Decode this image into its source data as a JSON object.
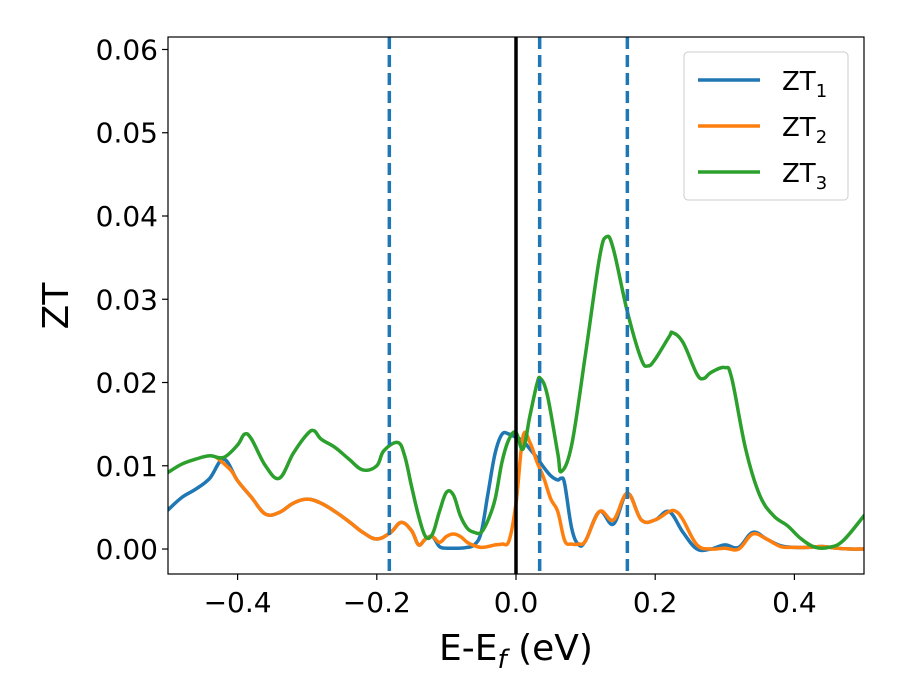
{
  "chart_data": {
    "type": "line",
    "title": "",
    "xlabel": "E-E",
    "xlabel_sub": "f",
    "xlabel_unit": " (eV)",
    "ylabel": "ZT",
    "xlim": [
      -0.5,
      0.5
    ],
    "ylim": [
      -0.003,
      0.0615
    ],
    "xticks": [
      -0.4,
      -0.2,
      0.0,
      0.2,
      0.4
    ],
    "xtick_labels": [
      "−0.4",
      "−0.2",
      "0.0",
      "0.2",
      "0.4"
    ],
    "yticks": [
      0.0,
      0.01,
      0.02,
      0.03,
      0.04,
      0.05,
      0.06
    ],
    "ytick_labels": [
      "0.00",
      "0.01",
      "0.02",
      "0.03",
      "0.04",
      "0.05",
      "0.06"
    ],
    "grid": false,
    "legend_position": "top-right",
    "vertical_lines": [
      {
        "x": -0.182,
        "style": "dashed",
        "color": "#1f77b4"
      },
      {
        "x": 0.0,
        "style": "solid",
        "color": "#000000"
      },
      {
        "x": 0.034,
        "style": "dashed",
        "color": "#1f77b4"
      },
      {
        "x": 0.16,
        "style": "dashed",
        "color": "#1f77b4"
      }
    ],
    "series": [
      {
        "name": "ZT",
        "name_sub": "1",
        "color": "#1f77b4",
        "x": [
          -0.5,
          -0.48,
          -0.46,
          -0.44,
          -0.42,
          -0.4,
          -0.38,
          -0.36,
          -0.34,
          -0.32,
          -0.3,
          -0.28,
          -0.26,
          -0.24,
          -0.22,
          -0.2,
          -0.18,
          -0.165,
          -0.15,
          -0.14,
          -0.13,
          -0.12,
          -0.11,
          -0.1,
          -0.09,
          -0.08,
          -0.07,
          -0.06,
          -0.05,
          -0.04,
          -0.03,
          -0.02,
          -0.01,
          0.0,
          0.01,
          0.02,
          0.03,
          0.04,
          0.05,
          0.06,
          0.065,
          0.07,
          0.08,
          0.09,
          0.1,
          0.12,
          0.14,
          0.16,
          0.18,
          0.2,
          0.22,
          0.24,
          0.26,
          0.28,
          0.3,
          0.32,
          0.34,
          0.36,
          0.38,
          0.4,
          0.42,
          0.44,
          0.46,
          0.48,
          0.5
        ],
        "y": [
          0.0047,
          0.0062,
          0.0072,
          0.0085,
          0.0108,
          0.0082,
          0.0062,
          0.0042,
          0.0044,
          0.0055,
          0.006,
          0.0055,
          0.0045,
          0.0033,
          0.002,
          0.0012,
          0.002,
          0.0032,
          0.0022,
          0.0005,
          0.0012,
          0.0015,
          0.0003,
          0.0001,
          0.0001,
          0.0001,
          0.0002,
          0.0005,
          0.002,
          0.0068,
          0.0115,
          0.0138,
          0.0138,
          0.0134,
          0.013,
          0.012,
          0.011,
          0.0098,
          0.0088,
          0.0083,
          0.0085,
          0.0078,
          0.0025,
          0.0005,
          0.001,
          0.0045,
          0.003,
          0.0067,
          0.0035,
          0.0035,
          0.0045,
          0.002,
          0.0,
          0.0,
          0.0005,
          0.0002,
          0.002,
          0.0012,
          0.0004,
          0.0002,
          0.0002,
          0.0003,
          0.0001,
          0.0,
          0.0
        ]
      },
      {
        "name": "ZT",
        "name_sub": "2",
        "color": "#ff7f0e",
        "x": [
          -0.43,
          -0.41,
          -0.4,
          -0.38,
          -0.36,
          -0.34,
          -0.32,
          -0.3,
          -0.28,
          -0.26,
          -0.24,
          -0.22,
          -0.2,
          -0.18,
          -0.165,
          -0.15,
          -0.14,
          -0.13,
          -0.12,
          -0.11,
          -0.1,
          -0.09,
          -0.08,
          -0.07,
          -0.06,
          -0.05,
          -0.04,
          -0.03,
          -0.02,
          -0.01,
          0.0,
          0.01,
          0.02,
          0.03,
          0.04,
          0.05,
          0.06,
          0.07,
          0.08,
          0.09,
          0.1,
          0.12,
          0.14,
          0.16,
          0.18,
          0.2,
          0.22,
          0.23,
          0.24,
          0.26,
          0.28,
          0.3,
          0.32,
          0.34,
          0.36,
          0.38,
          0.4,
          0.42,
          0.44,
          0.46,
          0.48,
          0.5
        ],
        "y": [
          0.011,
          0.0095,
          0.0082,
          0.0062,
          0.0042,
          0.0044,
          0.0055,
          0.006,
          0.0055,
          0.0045,
          0.0033,
          0.002,
          0.0012,
          0.002,
          0.0032,
          0.0022,
          0.0005,
          0.0012,
          0.0015,
          0.0008,
          0.0015,
          0.0018,
          0.0015,
          0.0008,
          0.0004,
          0.0002,
          0.0003,
          0.0005,
          0.0006,
          0.001,
          0.0055,
          0.0135,
          0.0128,
          0.0105,
          0.0085,
          0.006,
          0.0045,
          0.001,
          0.0006,
          0.0006,
          0.001,
          0.0045,
          0.0035,
          0.0067,
          0.0035,
          0.0035,
          0.0045,
          0.0045,
          0.0035,
          0.0005,
          0.0,
          0.0001,
          0.0,
          0.0018,
          0.0012,
          0.0003,
          0.0002,
          0.0002,
          0.0003,
          0.0001,
          0.0,
          0.0
        ]
      },
      {
        "name": "ZT",
        "name_sub": "3",
        "color": "#2ca02c",
        "x": [
          -0.5,
          -0.48,
          -0.46,
          -0.44,
          -0.42,
          -0.4,
          -0.39,
          -0.38,
          -0.36,
          -0.34,
          -0.32,
          -0.3,
          -0.29,
          -0.28,
          -0.26,
          -0.24,
          -0.22,
          -0.2,
          -0.19,
          -0.17,
          -0.16,
          -0.15,
          -0.14,
          -0.13,
          -0.12,
          -0.11,
          -0.1,
          -0.09,
          -0.08,
          -0.07,
          -0.06,
          -0.05,
          -0.04,
          -0.03,
          -0.02,
          -0.01,
          0.0,
          0.01,
          0.02,
          0.03,
          0.035,
          0.045,
          0.06,
          0.065,
          0.08,
          0.1,
          0.12,
          0.13,
          0.14,
          0.16,
          0.18,
          0.19,
          0.2,
          0.22,
          0.225,
          0.24,
          0.26,
          0.27,
          0.28,
          0.3,
          0.31,
          0.33,
          0.35,
          0.37,
          0.39,
          0.41,
          0.43,
          0.45,
          0.47,
          0.5
        ],
        "y": [
          0.0092,
          0.0102,
          0.0108,
          0.0112,
          0.011,
          0.0125,
          0.0138,
          0.0132,
          0.01,
          0.0085,
          0.0115,
          0.0138,
          0.0142,
          0.0132,
          0.0122,
          0.0108,
          0.0095,
          0.01,
          0.0118,
          0.0128,
          0.0112,
          0.0075,
          0.004,
          0.0015,
          0.0018,
          0.0045,
          0.0068,
          0.0065,
          0.004,
          0.0025,
          0.002,
          0.002,
          0.0035,
          0.006,
          0.0105,
          0.0132,
          0.014,
          0.012,
          0.016,
          0.0198,
          0.0205,
          0.0185,
          0.0115,
          0.0093,
          0.0125,
          0.0235,
          0.035,
          0.0375,
          0.036,
          0.0285,
          0.0228,
          0.022,
          0.0228,
          0.0255,
          0.026,
          0.0248,
          0.021,
          0.0205,
          0.0212,
          0.0218,
          0.0205,
          0.012,
          0.0065,
          0.004,
          0.0028,
          0.0012,
          0.0002,
          0.0002,
          0.001,
          0.004
        ]
      }
    ]
  }
}
